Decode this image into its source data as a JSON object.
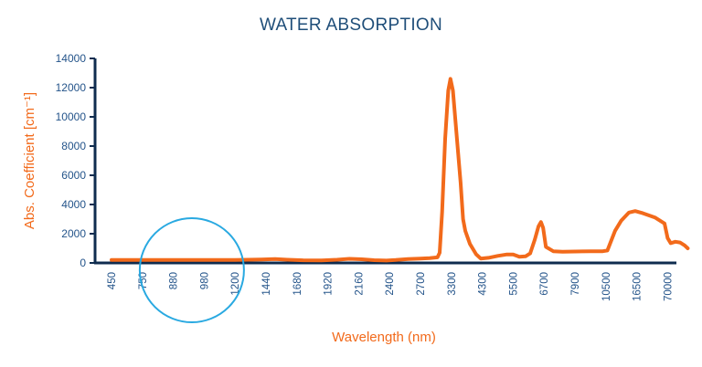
{
  "chart_data": {
    "type": "line",
    "title": "WATER ABSORPTION",
    "xlabel": "Wavelength (nm)",
    "ylabel": "Abs. Coefficient [cm⁻¹]",
    "ylim": [
      0,
      14000
    ],
    "yticks": [
      "0",
      "2000",
      "4000",
      "6000",
      "8000",
      "10000",
      "12000",
      "14000"
    ],
    "categories": [
      "450",
      "750",
      "880",
      "980",
      "1200",
      "1440",
      "1680",
      "1920",
      "2160",
      "2400",
      "2700",
      "3300",
      "4300",
      "5500",
      "6700",
      "7900",
      "10500",
      "16500",
      "70000"
    ],
    "grid": false,
    "series": [
      {
        "color": "#f26a1b",
        "points": [
          [
            0,
            200
          ],
          [
            1,
            200
          ],
          [
            2,
            200
          ],
          [
            3,
            200
          ],
          [
            4,
            200
          ],
          [
            4.85,
            230
          ],
          [
            5.3,
            260
          ],
          [
            5.7,
            220
          ],
          [
            6.2,
            180
          ],
          [
            6.8,
            170
          ],
          [
            7.3,
            220
          ],
          [
            7.7,
            280
          ],
          [
            8.1,
            250
          ],
          [
            8.5,
            190
          ],
          [
            8.9,
            160
          ],
          [
            9.2,
            200
          ],
          [
            9.6,
            270
          ],
          [
            10.0,
            300
          ],
          [
            10.3,
            330
          ],
          [
            10.55,
            380
          ],
          [
            10.62,
            700
          ],
          [
            10.7,
            3500
          ],
          [
            10.8,
            8500
          ],
          [
            10.9,
            11800
          ],
          [
            10.97,
            12600
          ],
          [
            11.05,
            11800
          ],
          [
            11.18,
            8500
          ],
          [
            11.3,
            5500
          ],
          [
            11.38,
            3000
          ],
          [
            11.45,
            2200
          ],
          [
            11.6,
            1300
          ],
          [
            11.8,
            600
          ],
          [
            11.95,
            300
          ],
          [
            12.2,
            350
          ],
          [
            12.5,
            480
          ],
          [
            12.8,
            580
          ],
          [
            13.0,
            580
          ],
          [
            13.2,
            420
          ],
          [
            13.4,
            450
          ],
          [
            13.55,
            650
          ],
          [
            13.7,
            1600
          ],
          [
            13.82,
            2500
          ],
          [
            13.9,
            2800
          ],
          [
            13.97,
            2400
          ],
          [
            14.06,
            1100
          ],
          [
            14.3,
            800
          ],
          [
            14.6,
            760
          ],
          [
            15.0,
            780
          ],
          [
            15.5,
            800
          ],
          [
            15.9,
            800
          ],
          [
            16.05,
            850
          ],
          [
            16.15,
            1400
          ],
          [
            16.3,
            2200
          ],
          [
            16.5,
            2900
          ],
          [
            16.75,
            3450
          ],
          [
            16.95,
            3550
          ],
          [
            17.2,
            3400
          ],
          [
            17.6,
            3100
          ],
          [
            17.9,
            2700
          ],
          [
            18.0,
            1700
          ],
          [
            18.1,
            1350
          ],
          [
            18.25,
            1450
          ],
          [
            18.4,
            1400
          ],
          [
            18.55,
            1200
          ],
          [
            18.65,
            1000
          ]
        ]
      }
    ]
  },
  "colors": {
    "title": "#1f4e79",
    "axis": "#0f2c4f",
    "tick_text": "#24548a",
    "series": "#f26a1b",
    "axis_label": "#f26a1b",
    "highlight_circle": "#29a9e1"
  },
  "highlight": {
    "shape": "circle",
    "center_category": 2.6,
    "center_value": -500
  }
}
